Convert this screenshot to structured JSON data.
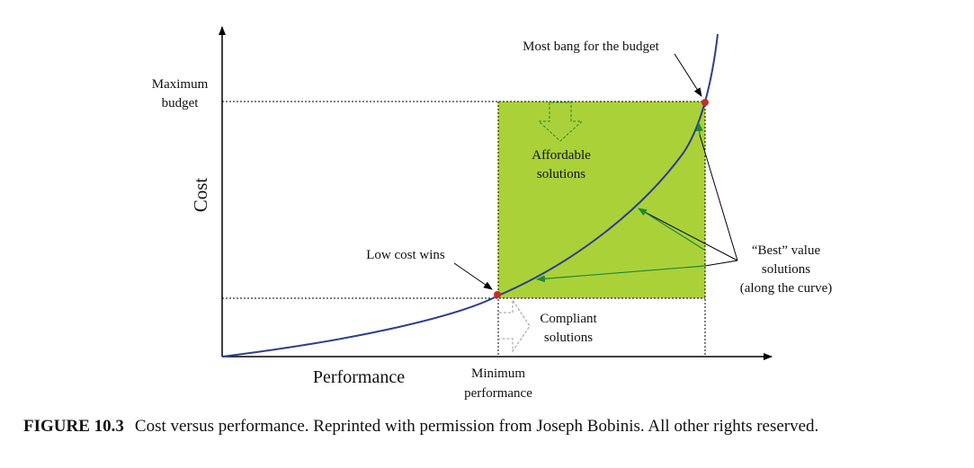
{
  "labels": {
    "y_axis": "Cost",
    "x_axis": "Performance",
    "max_budget": [
      "Maximum",
      "budget"
    ],
    "min_performance": [
      "Minimum",
      "performance"
    ],
    "most_bang": "Most bang for the budget",
    "low_cost": "Low cost wins",
    "affordable": [
      "Affordable",
      "solutions"
    ],
    "compliant": [
      "Compliant",
      "solutions"
    ],
    "best_value": [
      "“Best” value",
      "solutions",
      "(along the curve)"
    ]
  },
  "caption": {
    "label": "FIGURE 10.3",
    "text": "Cost versus performance. Reprinted with permission from Joseph Bobinis. All other rights reserved."
  },
  "colors": {
    "region_fill": "#abd139",
    "curve": "#2b3f8f",
    "point": "#cc2a2a",
    "green_arrow": "#1a8a3a",
    "axis": "#000000"
  }
}
